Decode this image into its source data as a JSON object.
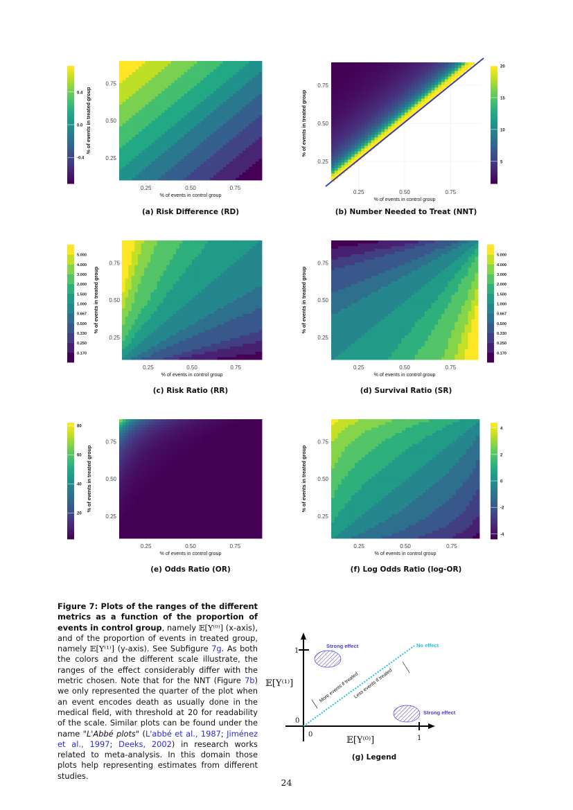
{
  "chart_data": [
    {
      "id": "a",
      "type": "heatmap",
      "title": "(a) Risk Difference (RD)",
      "xlabel": "% of events in control group",
      "ylabel": "% of events in treated group",
      "xticks": [
        "0.25",
        "0.50",
        "0.75"
      ],
      "yticks": [
        "0.25",
        "0.50",
        "0.75"
      ],
      "xlim": [
        0.1,
        0.9
      ],
      "ylim": [
        0.1,
        0.9
      ],
      "colorbar": {
        "ticks": [
          "-0.4",
          "0.0",
          "0.4"
        ],
        "range": [
          -0.72,
          0.72
        ],
        "position": "left",
        "style": "banded"
      }
    },
    {
      "id": "b",
      "type": "heatmap",
      "title": "(b) Number Needed to Treat (NNT)",
      "xlabel": "% of events in control group",
      "ylabel": "% of events in treated group",
      "xticks": [
        "0.25",
        "0.50",
        "0.75"
      ],
      "yticks": [
        "0.25",
        "0.50",
        "0.75"
      ],
      "xlim": [
        0.1,
        0.9
      ],
      "ylim": [
        0.1,
        0.9
      ],
      "colorbar": {
        "ticks": [
          "5",
          "10",
          "15",
          "20"
        ],
        "range": [
          1.5,
          20
        ],
        "position": "right",
        "style": "continuous"
      },
      "diagonal_color": "#3f3fb0"
    },
    {
      "id": "c",
      "type": "heatmap",
      "title": "(c) Risk Ratio (RR)",
      "xlabel": "% of events in control group",
      "ylabel": "% of events in treated group",
      "xticks": [
        "0.25",
        "0.50",
        "0.75"
      ],
      "yticks": [
        "0.25",
        "0.50",
        "0.75"
      ],
      "xlim": [
        0.1,
        0.9
      ],
      "ylim": [
        0.1,
        0.9
      ],
      "colorbar": {
        "ticks": [
          "0.170",
          "0.250",
          "0.330",
          "0.500",
          "0.667",
          "1.000",
          "1.500",
          "2.000",
          "3.000",
          "4.000",
          "5.000"
        ],
        "position": "left",
        "style": "discrete"
      }
    },
    {
      "id": "d",
      "type": "heatmap",
      "title": "(d) Survival Ratio (SR)",
      "xlabel": "% of events in control group",
      "ylabel": "% of events in treated group",
      "xticks": [
        "0.25",
        "0.50",
        "0.75"
      ],
      "yticks": [
        "0.25",
        "0.50",
        "0.75"
      ],
      "xlim": [
        0.1,
        0.9
      ],
      "ylim": [
        0.1,
        0.9
      ],
      "colorbar": {
        "ticks": [
          "0.170",
          "0.250",
          "0.330",
          "0.500",
          "0.667",
          "1.000",
          "1.500",
          "2.000",
          "3.000",
          "4.000",
          "5.000"
        ],
        "position": "right",
        "style": "discrete"
      }
    },
    {
      "id": "e",
      "type": "heatmap",
      "title": "(e) Odds Ratio (OR)",
      "xlabel": "% of events in control group",
      "ylabel": "% of events in treated group",
      "xticks": [
        "0.25",
        "0.50",
        "0.75"
      ],
      "yticks": [
        "0.25",
        "0.50",
        "0.75"
      ],
      "xlim": [
        0.1,
        0.9
      ],
      "ylim": [
        0.1,
        0.9
      ],
      "colorbar": {
        "ticks": [
          "20",
          "40",
          "60",
          "80"
        ],
        "range": [
          2,
          82
        ],
        "position": "left",
        "style": "continuous"
      }
    },
    {
      "id": "f",
      "type": "heatmap",
      "title": "(f) Log Odds Ratio (log-OR)",
      "xlabel": "% of events in control group",
      "ylabel": "% of events in treated group",
      "xticks": [
        "0.25",
        "0.50",
        "0.75"
      ],
      "yticks": [
        "0.25",
        "0.50",
        "0.75"
      ],
      "xlim": [
        0.1,
        0.9
      ],
      "ylim": [
        0.1,
        0.9
      ],
      "colorbar": {
        "ticks": [
          "-4",
          "-2",
          "0",
          "2",
          "4"
        ],
        "range": [
          -4.4,
          4.4
        ],
        "position": "right",
        "style": "banded"
      }
    }
  ],
  "colormap": "viridis",
  "legend_figure": {
    "caption": "(g) Legend",
    "y_label": "𝔼[Y⁽¹⁾]",
    "x_label": "𝔼[Y⁽⁰⁾]",
    "y_tick_one": "1",
    "y_tick_zero": "0",
    "x_tick_zero": "0",
    "x_tick_one": "1",
    "strong_effect_top": "Strong effect",
    "strong_effect_bottom": "Strong effect",
    "no_effect": "No effect",
    "more_events": "More events if treated",
    "less_events": "Less events  if treated",
    "colors": {
      "strong_effect": "#4a3cd8",
      "no_effect": "#22c0d8"
    }
  },
  "caption": {
    "s1": "Figure 7: Plots of the ranges of the different metrics as a function of the proportion of events in control group",
    "s2": ", namely ",
    "m1": "𝔼[Y⁽⁰⁾]",
    "s3": " (x-axis), and of the proportion of events in treated group, namely ",
    "m2": "𝔼[Y⁽¹⁾]",
    "s4": " (y-axis).  See Subfigure ",
    "l1": "7g",
    "s5": ".  As both the colors and the different scale illustrate, the ranges of the effect considerably differ with the metric chosen. Note that for the NNT (Figure ",
    "l2": "7b",
    "s6": ") we only represented the quarter of the plot when an event encodes death as usually done in the medical field, with threshold at 20 for readability of the scale.  Similar plots can be found under the name \"",
    "i1": "L'Abbé plots",
    "s7": "\" (",
    "l3": "L'abbé et al., 1987",
    "s8": "; ",
    "l4": "Jiménez et al., 1997",
    "s9": "; ",
    "l5": "Deeks, 2002",
    "s10": ") in research works related to meta-analysis. In this domain those plots help representing estimates from different studies."
  },
  "page_number": "24"
}
